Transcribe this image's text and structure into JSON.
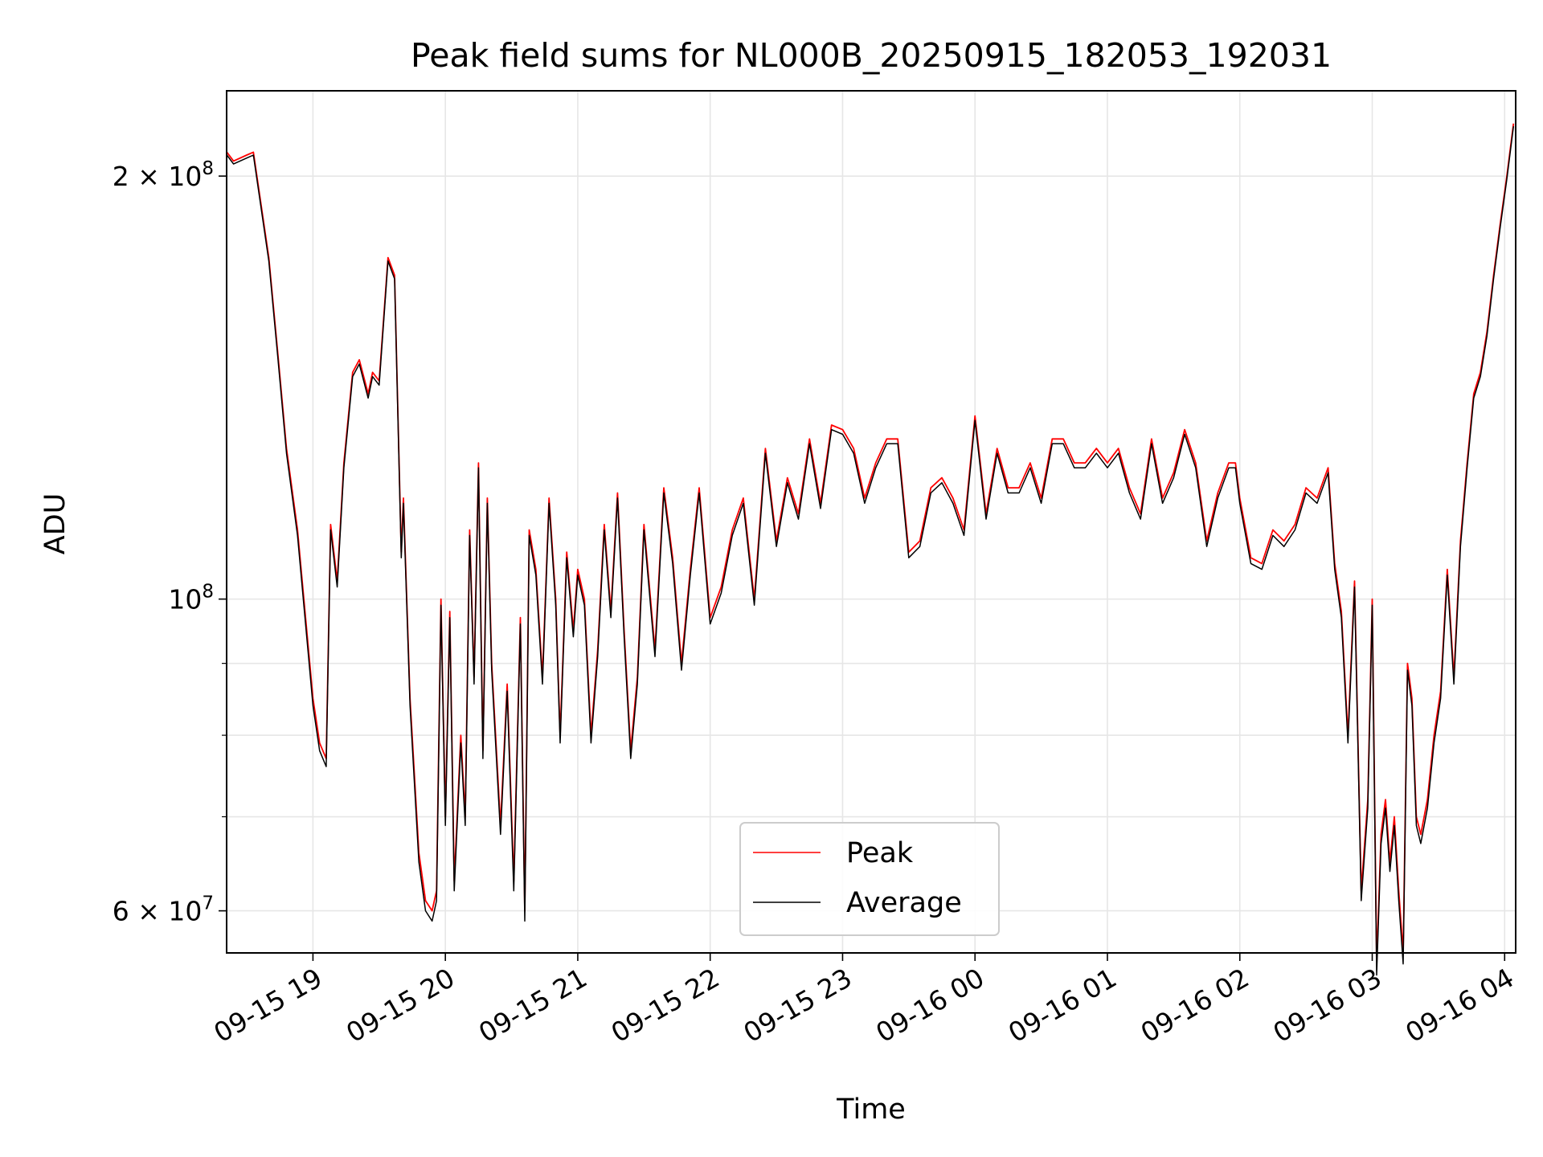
{
  "chart_data": {
    "type": "line",
    "title": "Peak field sums for NL000B_20250915_182053_192031",
    "xlabel": "Time",
    "ylabel": "ADU",
    "yscale": "log",
    "grid": true,
    "legend_position": "bottom-center",
    "xlim": [
      "2025-09-15 18:20:53",
      "2025-09-16 04:05:00"
    ],
    "ylim": [
      56000000,
      230000000
    ],
    "x_ticks": [
      "09-15 19",
      "09-15 20",
      "09-15 21",
      "09-15 22",
      "09-15 23",
      "09-16 00",
      "09-16 01",
      "09-16 02",
      "09-16 03",
      "09-16 04"
    ],
    "y_ticks": [
      {
        "value": 60000000,
        "label": "6 × 10",
        "exp": "7"
      },
      {
        "value": 100000000,
        "label": "10",
        "exp": "8"
      },
      {
        "value": 200000000,
        "label": "2 × 10",
        "exp": "8"
      }
    ],
    "x": [
      "18:21",
      "18:24",
      "18:30",
      "18:33",
      "18:40",
      "18:44",
      "18:48",
      "18:53",
      "18:58",
      "19:00",
      "19:03",
      "19:06",
      "19:08",
      "19:11",
      "19:14",
      "19:18",
      "19:21",
      "19:25",
      "19:27",
      "19:30",
      "19:34",
      "19:37",
      "19:40",
      "19:41",
      "19:44",
      "19:48",
      "19:51",
      "19:54",
      "19:56",
      "19:58",
      "20:00",
      "20:02",
      "20:04",
      "20:07",
      "20:09",
      "20:11",
      "20:13",
      "20:15",
      "20:17",
      "20:19",
      "20:21",
      "20:25",
      "20:28",
      "20:31",
      "20:34",
      "20:36",
      "20:38",
      "20:41",
      "20:44",
      "20:47",
      "20:50",
      "20:52",
      "20:55",
      "20:58",
      "21:00",
      "21:03",
      "21:06",
      "21:09",
      "21:12",
      "21:15",
      "21:18",
      "21:21",
      "21:24",
      "21:27",
      "21:30",
      "21:35",
      "21:39",
      "21:43",
      "21:47",
      "21:51",
      "21:55",
      "22:00",
      "22:05",
      "22:10",
      "22:15",
      "22:20",
      "22:25",
      "22:30",
      "22:35",
      "22:40",
      "22:45",
      "22:50",
      "22:55",
      "23:00",
      "23:05",
      "23:10",
      "23:15",
      "23:20",
      "23:25",
      "23:30",
      "23:35",
      "23:40",
      "23:45",
      "23:50",
      "23:55",
      "00:00",
      "00:05",
      "00:10",
      "00:15",
      "00:20",
      "00:25",
      "00:30",
      "00:35",
      "00:40",
      "00:45",
      "00:50",
      "00:55",
      "01:00",
      "01:05",
      "01:10",
      "01:15",
      "01:20",
      "01:25",
      "01:30",
      "01:35",
      "01:40",
      "01:45",
      "01:50",
      "01:55",
      "01:58",
      "02:00",
      "02:05",
      "02:10",
      "02:15",
      "02:20",
      "02:25",
      "02:30",
      "02:35",
      "02:40",
      "02:43",
      "02:46",
      "02:49",
      "02:52",
      "02:55",
      "02:58",
      "03:00",
      "03:02",
      "03:04",
      "03:06",
      "03:08",
      "03:10",
      "03:12",
      "03:14",
      "03:16",
      "03:18",
      "03:20",
      "03:22",
      "03:25",
      "03:28",
      "03:31",
      "03:34",
      "03:37",
      "03:40",
      "03:43",
      "03:46",
      "03:49",
      "03:52",
      "03:55",
      "03:58",
      "04:01",
      "04:04"
    ],
    "series": [
      {
        "name": "Peak",
        "color": "#ff0000",
        "values": [
          208,
          205,
          207,
          208,
          175,
          150,
          128,
          112,
          92,
          85,
          79,
          77,
          113,
          103,
          125,
          145,
          148,
          140,
          145,
          143,
          175,
          170,
          108,
          118,
          85,
          66,
          61,
          60,
          62,
          100,
          70,
          98,
          63,
          80,
          70,
          112,
          88,
          125,
          78,
          118,
          90,
          69,
          87,
          63,
          97,
          60,
          112,
          105,
          88,
          118,
          100,
          80,
          108,
          95,
          105,
          100,
          80,
          92,
          113,
          98,
          119,
          95,
          78,
          88,
          113,
          92,
          120,
          107,
          90,
          105,
          120,
          97,
          102,
          112,
          118,
          100,
          128,
          110,
          122,
          115,
          130,
          117,
          133,
          132,
          128,
          118,
          125,
          130,
          130,
          108,
          110,
          120,
          122,
          118,
          112,
          135,
          115,
          128,
          120,
          120,
          125,
          118,
          130,
          130,
          125,
          125,
          128,
          125,
          128,
          120,
          115,
          130,
          118,
          123,
          132,
          125,
          110,
          119,
          125,
          125,
          118,
          107,
          106,
          112,
          110,
          113,
          120,
          118,
          124,
          106,
          98,
          80,
          103,
          62,
          72,
          100,
          55,
          68,
          72,
          65,
          70,
          62,
          56,
          90,
          85,
          70,
          68,
          72,
          80,
          86,
          105,
          88,
          110,
          125,
          140,
          145,
          155,
          170,
          185,
          200,
          218
        ]
      },
      {
        "name": "Average",
        "color": "#000000",
        "values": [
          207,
          204,
          206,
          207,
          174,
          149,
          127,
          111,
          91,
          84,
          78,
          76,
          112,
          102,
          124,
          144,
          147,
          139,
          144,
          142,
          174,
          169,
          107,
          117,
          84,
          65,
          60,
          59,
          61,
          99,
          69,
          97,
          62,
          79,
          69,
          111,
          87,
          124,
          77,
          117,
          89,
          68,
          86,
          62,
          96,
          59,
          111,
          104,
          87,
          117,
          99,
          79,
          107,
          94,
          104,
          99,
          79,
          91,
          112,
          97,
          118,
          94,
          77,
          87,
          112,
          91,
          119,
          106,
          89,
          104,
          119,
          96,
          101,
          111,
          117,
          99,
          127,
          109,
          121,
          114,
          129,
          116,
          132,
          131,
          127,
          117,
          124,
          129,
          129,
          107,
          109,
          119,
          121,
          117,
          111,
          134,
          114,
          127,
          119,
          119,
          124,
          117,
          129,
          129,
          124,
          124,
          127,
          124,
          127,
          119,
          114,
          129,
          117,
          122,
          131,
          124,
          109,
          118,
          124,
          124,
          117,
          106,
          105,
          111,
          109,
          112,
          119,
          117,
          123,
          105,
          97,
          79,
          102,
          61,
          71,
          99,
          54,
          67,
          71,
          64,
          69,
          61,
          55,
          89,
          84,
          69,
          67,
          71,
          79,
          85,
          104,
          87,
          109,
          124,
          139,
          144,
          154,
          169,
          184,
          199,
          217
        ]
      }
    ],
    "legend": {
      "entries": [
        "Peak",
        "Average"
      ]
    }
  }
}
